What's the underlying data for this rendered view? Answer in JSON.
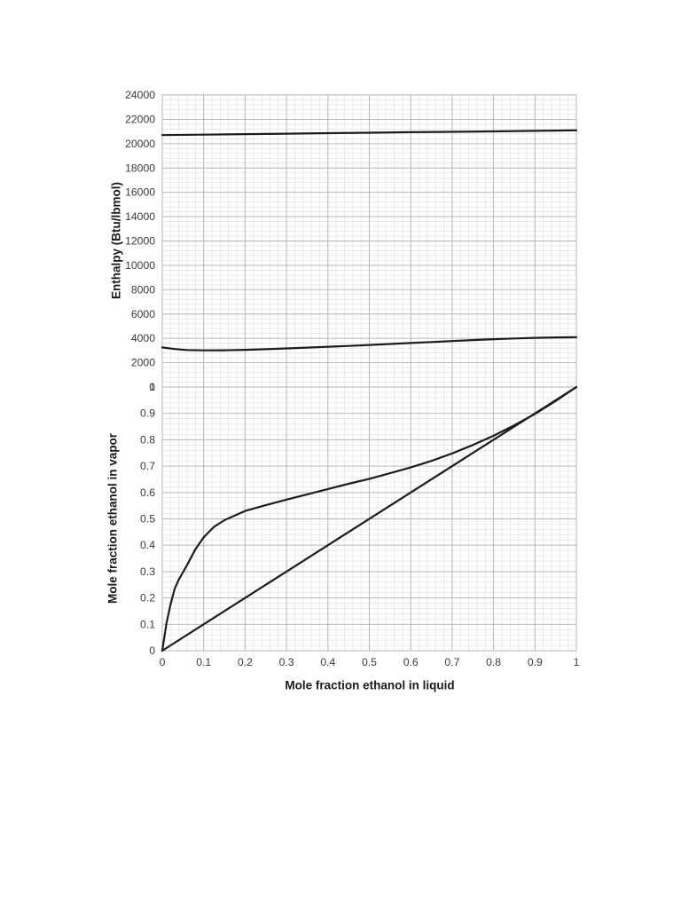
{
  "page": {
    "background": "#ffffff"
  },
  "colors": {
    "curve": "#1c1c1c",
    "grid_major": "#b4b4b4",
    "grid_minor": "#e2e2e2",
    "tick_text": "#3a3a3a",
    "title_text": "#1a1a1a"
  },
  "chart_data": [
    {
      "type": "line",
      "title": "",
      "xlabel": "",
      "ylabel": "Enthalpy (Btu/lbmol)",
      "xlim": [
        0,
        1
      ],
      "ylim": [
        0,
        24000
      ],
      "grid": true,
      "legend": "none",
      "show_x_tick_labels": false,
      "x_minor_step": 0.02,
      "y_minor_step": 400,
      "xticks": [
        0,
        0.1,
        0.2,
        0.3,
        0.4,
        0.5,
        0.6,
        0.7,
        0.8,
        0.9,
        1
      ],
      "xtick_labels": [
        "0",
        "0.1",
        "0.2",
        "0.3",
        "0.4",
        "0.5",
        "0.6",
        "0.7",
        "0.8",
        "0.9",
        "1"
      ],
      "yticks": [
        0,
        2000,
        4000,
        6000,
        8000,
        10000,
        12000,
        14000,
        16000,
        18000,
        20000,
        22000,
        24000
      ],
      "ytick_labels": [
        "0",
        "2000",
        "4000",
        "6000",
        "8000",
        "10000",
        "12000",
        "14000",
        "16000",
        "18000",
        "20000",
        "22000",
        "24000"
      ],
      "series": [
        {
          "name": "saturated-vapor-enthalpy-curve",
          "x": [
            0,
            0.1,
            0.2,
            0.3,
            0.4,
            0.5,
            0.6,
            0.7,
            0.8,
            0.9,
            1
          ],
          "y": [
            20700,
            20740,
            20780,
            20820,
            20860,
            20900,
            20940,
            20975,
            21010,
            21055,
            21100
          ]
        },
        {
          "name": "saturated-liquid-enthalpy-curve",
          "x": [
            0,
            0.03,
            0.06,
            0.1,
            0.15,
            0.2,
            0.25,
            0.3,
            0.35,
            0.4,
            0.45,
            0.5,
            0.55,
            0.6,
            0.65,
            0.7,
            0.75,
            0.8,
            0.85,
            0.9,
            0.95,
            1
          ],
          "y": [
            3250,
            3120,
            3040,
            3010,
            3020,
            3060,
            3110,
            3170,
            3240,
            3310,
            3380,
            3460,
            3540,
            3620,
            3700,
            3780,
            3860,
            3930,
            3990,
            4040,
            4075,
            4100
          ]
        }
      ]
    },
    {
      "type": "line",
      "title": "",
      "xlabel": "Mole fraction ethanol in liquid",
      "ylabel": "Mole fraction ethanol in vapor",
      "xlim": [
        0,
        1
      ],
      "ylim": [
        0,
        1
      ],
      "grid": true,
      "legend": "none",
      "show_x_tick_labels": true,
      "x_minor_step": 0.02,
      "y_minor_step": 0.02,
      "xticks": [
        0,
        0.1,
        0.2,
        0.3,
        0.4,
        0.5,
        0.6,
        0.7,
        0.8,
        0.9,
        1
      ],
      "xtick_labels": [
        "0",
        "0.1",
        "0.2",
        "0.3",
        "0.4",
        "0.5",
        "0.6",
        "0.7",
        "0.8",
        "0.9",
        "1"
      ],
      "yticks": [
        0,
        0.1,
        0.2,
        0.3,
        0.4,
        0.5,
        0.6,
        0.7,
        0.8,
        0.9,
        1
      ],
      "ytick_labels": [
        "0",
        "0.1",
        "0.2",
        "0.3",
        "0.4",
        "0.5",
        "0.6",
        "0.7",
        "0.8",
        "0.9",
        "1"
      ],
      "series": [
        {
          "name": "vapor-liquid-equilibrium-curve",
          "x": [
            0,
            0.01,
            0.02,
            0.03,
            0.04,
            0.06,
            0.08,
            0.1,
            0.125,
            0.15,
            0.2,
            0.25,
            0.3,
            0.35,
            0.4,
            0.45,
            0.5,
            0.55,
            0.6,
            0.65,
            0.7,
            0.75,
            0.8,
            0.85,
            0.9,
            0.95,
            1
          ],
          "y": [
            0,
            0.103,
            0.175,
            0.235,
            0.27,
            0.325,
            0.385,
            0.43,
            0.47,
            0.495,
            0.53,
            0.552,
            0.573,
            0.593,
            0.613,
            0.633,
            0.652,
            0.673,
            0.695,
            0.72,
            0.748,
            0.78,
            0.815,
            0.855,
            0.898,
            0.947,
            1
          ]
        },
        {
          "name": "diagonal-y-equals-x-line",
          "x": [
            0,
            1
          ],
          "y": [
            0,
            1
          ]
        }
      ]
    }
  ]
}
